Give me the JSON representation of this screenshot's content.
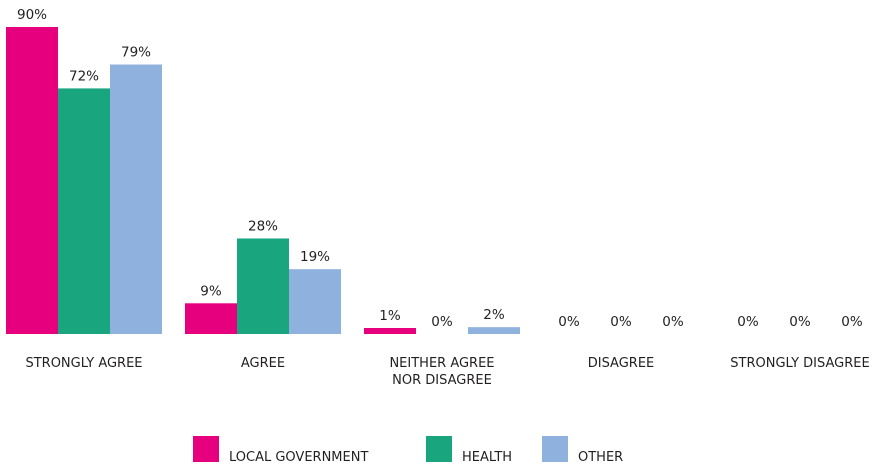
{
  "chart_data": {
    "type": "bar",
    "categories": [
      [
        "STRONGLY AGREE"
      ],
      [
        "AGREE"
      ],
      [
        "NEITHER AGREE",
        "NOR DISAGREE"
      ],
      [
        "DISAGREE"
      ],
      [
        "STRONGLY DISAGREE"
      ]
    ],
    "series": [
      {
        "name": "LOCAL GOVERNMENT",
        "color": "#e6007e",
        "values": [
          90,
          9,
          1,
          0,
          0
        ],
        "labels": [
          "90%",
          "9%",
          "1%",
          "0%",
          "0%"
        ]
      },
      {
        "name": "HEALTH",
        "color": "#19a67e",
        "values": [
          72,
          28,
          0,
          0,
          0
        ],
        "labels": [
          "72%",
          "28%",
          "0%",
          "0%",
          "0%"
        ]
      },
      {
        "name": "OTHER",
        "color": "#8fb1dd",
        "values": [
          79,
          19,
          2,
          0,
          0
        ],
        "labels": [
          "79%",
          "19%",
          "2%",
          "0%",
          "0%"
        ]
      }
    ],
    "ylim": [
      0,
      90
    ],
    "grid": false,
    "legend_position": "bottom-center"
  }
}
